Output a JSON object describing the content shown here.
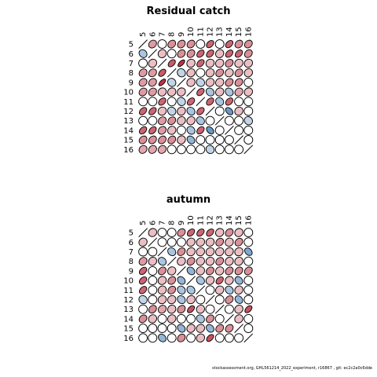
{
  "footer": "stockassessment.org, GHL561214_2022_experiment, r16867 , git: ec2c2a0c6dde",
  "colors": {
    "neg": "#2166ac",
    "pos": "#b2182b",
    "border": "#000000"
  },
  "chart_data": [
    {
      "type": "heatmap",
      "subtype": "correlation-ellipse-matrix",
      "title": "Residual catch",
      "row_labels": [
        "5",
        "6",
        "7",
        "8",
        "9",
        "10",
        "11",
        "12",
        "13",
        "14",
        "15",
        "16"
      ],
      "col_labels": [
        "5",
        "6",
        "7",
        "8",
        "9",
        "10",
        "11",
        "12",
        "13",
        "14",
        "15",
        "16"
      ],
      "matrix": [
        [
          1,
          0.35,
          0,
          0.4,
          0.4,
          0.4,
          0,
          0.6,
          0,
          0.6,
          0.4,
          0.4
        ],
        [
          -0.3,
          1,
          0.2,
          0,
          0.4,
          0.4,
          0.6,
          0.6,
          0.2,
          0.6,
          0.6,
          0.4
        ],
        [
          0,
          0.2,
          1,
          0.65,
          0.85,
          0.2,
          0.6,
          0.2,
          0.2,
          0.4,
          0.2,
          0.2
        ],
        [
          0.35,
          0.35,
          0.65,
          1,
          -0.2,
          0.2,
          0,
          0.2,
          0.4,
          0.2,
          0.4,
          0.2
        ],
        [
          0.35,
          0.35,
          0.85,
          -0.2,
          1,
          0.2,
          -0.2,
          0.2,
          0.2,
          0.4,
          0.4,
          0
        ],
        [
          0.35,
          0.35,
          0.2,
          0.2,
          0.2,
          1,
          0.6,
          -0.3,
          0.2,
          -0.3,
          0.3,
          0.2
        ],
        [
          0,
          0,
          0.6,
          0,
          -0.2,
          0.6,
          1,
          0.6,
          -0.3,
          0.6,
          0,
          0
        ],
        [
          0.6,
          0.6,
          0.2,
          -0.2,
          0.2,
          -0.3,
          0.6,
          1,
          0,
          -0.6,
          0.2,
          0
        ],
        [
          0,
          0,
          0.35,
          0.4,
          0.2,
          0.2,
          -0.3,
          0,
          1,
          0,
          0,
          -0.2
        ],
        [
          0.6,
          0.6,
          0.35,
          0.2,
          0,
          -0.3,
          0.6,
          -0.6,
          0,
          1,
          0,
          0
        ],
        [
          0.4,
          0.4,
          0.4,
          0.4,
          0.2,
          -0.4,
          0,
          0,
          0,
          0,
          1,
          0
        ],
        [
          0.3,
          0.3,
          0.3,
          0,
          0,
          0,
          0,
          -0.2,
          0,
          0,
          0,
          1
        ]
      ]
    },
    {
      "type": "heatmap",
      "subtype": "correlation-ellipse-matrix",
      "title": "autumn",
      "row_labels": [
        "5",
        "6",
        "7",
        "8",
        "9",
        "10",
        "11",
        "12",
        "13",
        "14",
        "15",
        "16"
      ],
      "col_labels": [
        "5",
        "6",
        "7",
        "8",
        "9",
        "10",
        "11",
        "12",
        "13",
        "14",
        "15",
        "16"
      ],
      "matrix": [
        [
          1,
          0.2,
          0,
          0,
          0.4,
          0.6,
          0.6,
          0.6,
          0.2,
          0.4,
          0.2,
          0
        ],
        [
          0.2,
          1,
          0,
          0,
          0,
          0.2,
          0.2,
          0.2,
          0.4,
          0.2,
          0.4,
          0
        ],
        [
          0,
          0,
          1,
          -0.3,
          0.4,
          0.2,
          0.2,
          0.2,
          0.2,
          0.2,
          0.2,
          -0.5
        ],
        [
          0.35,
          0.2,
          -0.3,
          1,
          0.2,
          0.4,
          0.2,
          0.2,
          0.4,
          0.2,
          0.2,
          0
        ],
        [
          0.6,
          0,
          0.4,
          0.2,
          1,
          -0.4,
          0.2,
          0.4,
          0.2,
          0.4,
          0.4,
          0.4
        ],
        [
          0.6,
          0,
          0.2,
          0.4,
          -0.4,
          1,
          -0.3,
          0.2,
          0.6,
          0.2,
          -0.4,
          0
        ],
        [
          0.6,
          0,
          0.2,
          0.4,
          -0.3,
          -0.3,
          1,
          0,
          0.2,
          -0.3,
          0.2,
          0
        ],
        [
          -0.2,
          0,
          0.2,
          0.2,
          -0.3,
          0.2,
          0,
          1,
          0,
          0.4,
          -0.4,
          0
        ],
        [
          0,
          0.4,
          0.3,
          0.2,
          0.4,
          0.7,
          0.2,
          0,
          1,
          0,
          0.2,
          0.7
        ],
        [
          0.4,
          0.2,
          0,
          0.2,
          0,
          0,
          -0.3,
          0.4,
          0,
          1,
          0.2,
          0
        ],
        [
          0,
          0,
          0,
          0,
          -0.4,
          0.2,
          0.2,
          -0.4,
          0.4,
          0.4,
          1,
          0
        ],
        [
          0,
          0,
          -0.4,
          0,
          0.4,
          0,
          0.2,
          0.7,
          0,
          0,
          0,
          1
        ]
      ]
    }
  ]
}
